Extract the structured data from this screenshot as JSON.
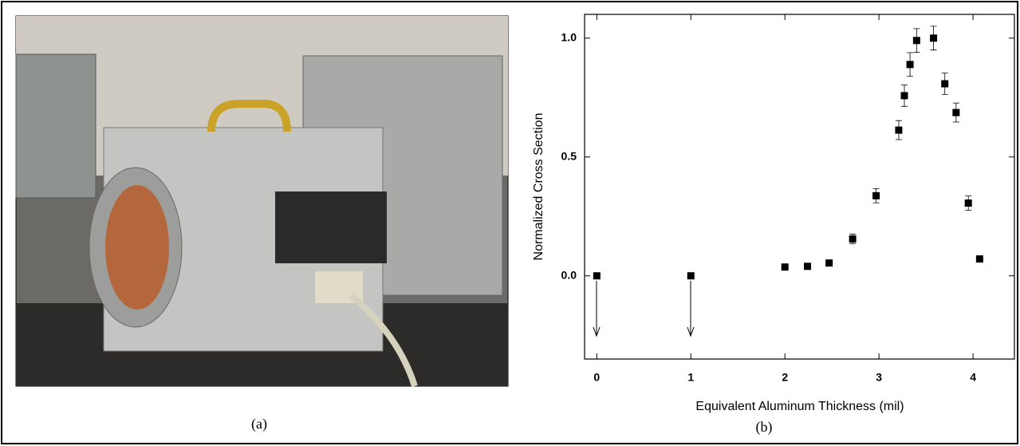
{
  "figure": {
    "panel_a_label": "(a)",
    "panel_b_label": "(b)"
  },
  "chart_data": {
    "type": "scatter",
    "x_label": "Equivalent Aluminum Thickness (mil)",
    "y_label": "Normalized Cross Section",
    "x": [
      0,
      1,
      2,
      2.24,
      2.47,
      2.72,
      2.97,
      3.21,
      3.27,
      3.33,
      3.4,
      3.58,
      3.7,
      3.82,
      3.95,
      4.07
    ],
    "values": [
      0,
      0,
      0.037,
      0.04,
      0.054,
      0.155,
      0.337,
      0.613,
      0.758,
      0.889,
      0.99,
      1.0,
      0.808,
      0.687,
      0.306,
      0.071
    ],
    "errors": [
      null,
      null,
      null,
      null,
      null,
      0.02,
      0.03,
      0.04,
      0.045,
      0.05,
      0.05,
      0.05,
      0.045,
      0.04,
      0.03,
      null
    ],
    "color": "#000000",
    "xlim": [
      -0.13,
      4.44
    ],
    "ylim": [
      -0.35,
      1.1
    ],
    "xticks": [
      0,
      1,
      2,
      3,
      4
    ],
    "yticks": [
      {
        "value": 0,
        "label": "0.0"
      },
      0.5,
      {
        "value": 1,
        "label": "1.0"
      }
    ]
  }
}
